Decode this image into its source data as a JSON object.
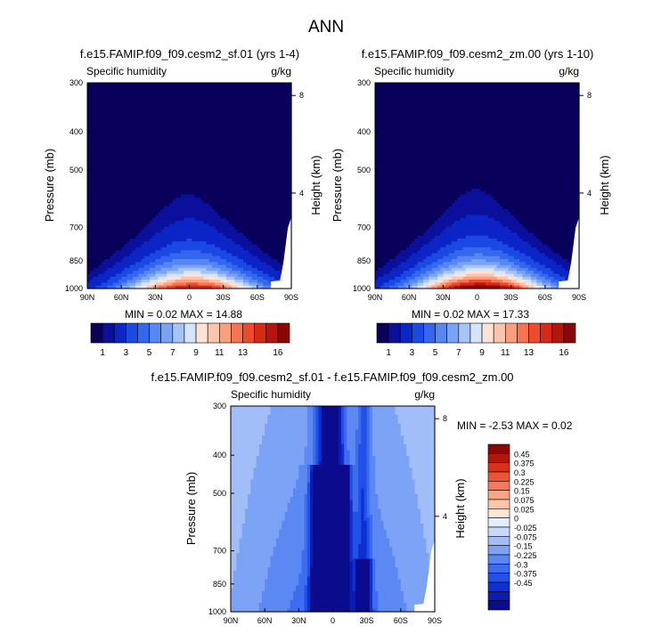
{
  "figure": {
    "title": "ANN"
  },
  "palette": {
    "seq": [
      "#08005a",
      "#0a109b",
      "#0b25c6",
      "#1a49e4",
      "#3466ee",
      "#5687f3",
      "#7aa3f6",
      "#a7c4f8",
      "#d5e4fb",
      "#fde3d5",
      "#fcc4aa",
      "#fb9e7d",
      "#f77352",
      "#ef4a2b",
      "#d62916",
      "#b4150d",
      "#8a0707"
    ],
    "diverging": [
      "#0a0c8d",
      "#0b1cb3",
      "#0c30d4",
      "#2350e6",
      "#3d6cef",
      "#5c88f3",
      "#7da3f6",
      "#a2bef8",
      "#c9d9fb",
      "#e4eefd",
      "#fde5d8",
      "#fcc6ae",
      "#fba585",
      "#f67a5a",
      "#ee5335",
      "#d83019",
      "#b5160c",
      "#8a0707"
    ]
  },
  "chart_data": [
    {
      "type": "heatmap",
      "title": "f.e15.FAMIP.f09_f09.cesm2_sf.01 (yrs 1-4)",
      "left_label": "Specific humidity",
      "units": "g/kg",
      "ylabel": "Pressure (mb)",
      "right_label": "Height (km)",
      "xticks": [
        "90N",
        "60N",
        "30N",
        "0",
        "30S",
        "60S",
        "90S"
      ],
      "yticks": [
        "300",
        "400",
        "500",
        "700",
        "850",
        "1000"
      ],
      "height_ticks": [
        "8",
        "4"
      ],
      "stats": "MIN =  0.02  MAX = 14.88",
      "colorbar_labels": [
        "1",
        "3",
        "5",
        "7",
        "9",
        "11",
        "13",
        "16"
      ],
      "levels": [
        0.5,
        1,
        2,
        3,
        4,
        5,
        6,
        7,
        8,
        9,
        10,
        11,
        12,
        13,
        14,
        15,
        16
      ],
      "peak": 14.88
    },
    {
      "type": "heatmap",
      "title": "f.e15.FAMIP.f09_f09.cesm2_zm.00 (yrs 1-10)",
      "left_label": "Specific humidity",
      "units": "g/kg",
      "ylabel": "Pressure (mb)",
      "right_label": "Height (km)",
      "xticks": [
        "90N",
        "60N",
        "30N",
        "0",
        "30S",
        "60S",
        "90S"
      ],
      "yticks": [
        "300",
        "400",
        "500",
        "700",
        "850",
        "1000"
      ],
      "height_ticks": [
        "8",
        "4"
      ],
      "stats": "MIN =  0.02  MAX = 17.33",
      "colorbar_labels": [
        "1",
        "3",
        "5",
        "7",
        "9",
        "11",
        "13",
        "16"
      ],
      "levels": [
        0.5,
        1,
        2,
        3,
        4,
        5,
        6,
        7,
        8,
        9,
        10,
        11,
        12,
        13,
        14,
        15,
        16
      ],
      "peak": 17.33
    },
    {
      "type": "heatmap",
      "title": "f.e15.FAMIP.f09_f09.cesm2_sf.01 - f.e15.FAMIP.f09_f09.cesm2_zm.00",
      "left_label": "Specific humidity",
      "units": "g/kg",
      "ylabel": "Pressure (mb)",
      "right_label": "Height (km)",
      "xticks": [
        "90N",
        "60N",
        "30N",
        "0",
        "30S",
        "60S",
        "90S"
      ],
      "yticks": [
        "300",
        "400",
        "500",
        "700",
        "850",
        "1000"
      ],
      "height_ticks": [
        "8",
        "4"
      ],
      "stats": "MIN =  -2.53  MAX =  0.02",
      "colorbar_labels": [
        "0.45",
        "0.375",
        "0.3",
        "0.225",
        "0.15",
        "0.075",
        "0.025",
        "0",
        "-0.025",
        "-0.075",
        "-0.15",
        "-0.225",
        "-0.3",
        "-0.375",
        "-0.45"
      ],
      "levels": [
        -0.45,
        -0.375,
        -0.3,
        -0.225,
        -0.15,
        -0.075,
        -0.025,
        0,
        0.025,
        0.075,
        0.15,
        0.225,
        0.3,
        0.375,
        0.45
      ]
    }
  ]
}
